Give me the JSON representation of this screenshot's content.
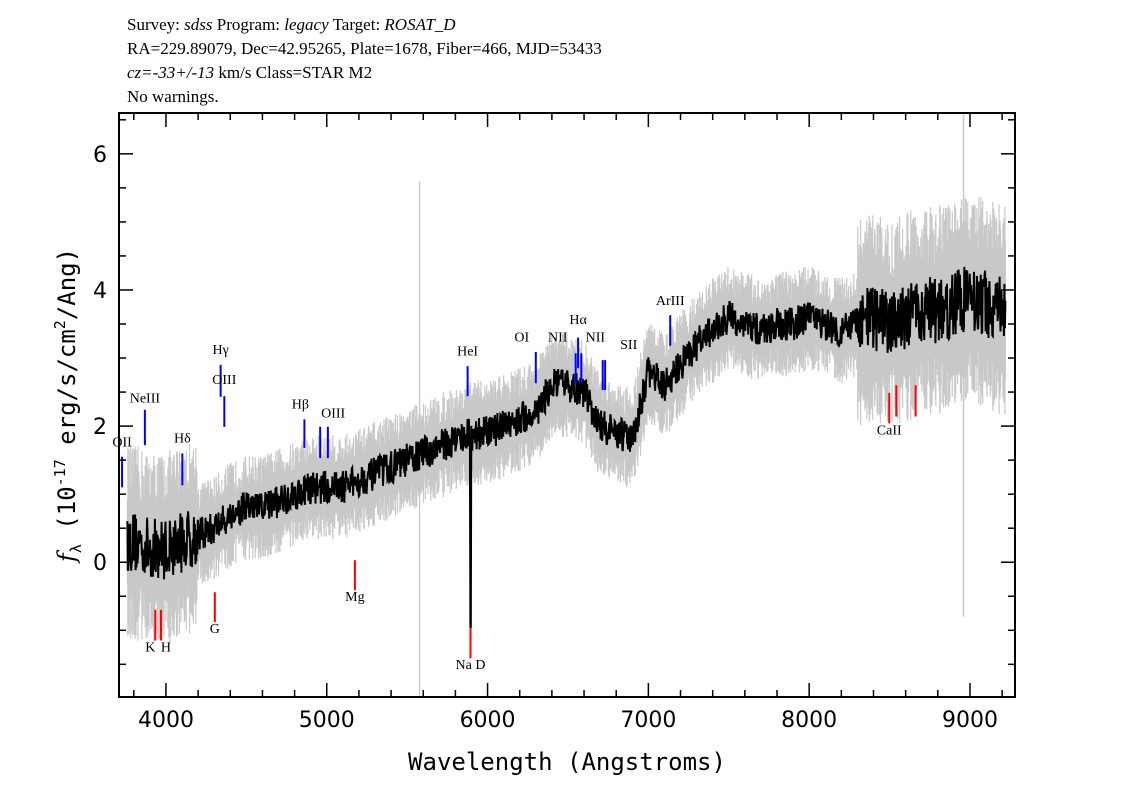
{
  "header": {
    "line1": {
      "survey_label": "Survey: ",
      "survey": "sdss",
      "program_label": " Program: ",
      "program": "legacy",
      "target_label": " Target: ",
      "target": "ROSAT_D"
    },
    "line2": "RA=229.89079, Dec=42.95265, Plate=1678, Fiber=466, MJD=53433",
    "line3": {
      "cz": "cz=-33+/-13",
      "rest": " km/s Class=STAR M2"
    },
    "line4": "No warnings."
  },
  "chart_data": {
    "type": "line",
    "xlabel": "Wavelength (Angstroms)",
    "ylabel": {
      "main": "f",
      "sub": "λ",
      "pre": " (10",
      "exp": "-17",
      "mid": " erg/s/cm",
      "exp2": "2",
      "post": "/Ang)"
    },
    "xlim": [
      3708,
      9280
    ],
    "ylim": [
      -1.98,
      6.6
    ],
    "x_ticks": [
      4000,
      5000,
      6000,
      7000,
      8000,
      9000
    ],
    "x_tick_labels": [
      "4000",
      "5000",
      "6000",
      "7000",
      "8000",
      "9000"
    ],
    "y_ticks": [
      0,
      2,
      4,
      6
    ],
    "y_tick_labels": [
      "0",
      "2",
      "4",
      "6"
    ],
    "colors": {
      "flux": "#000000",
      "error": "#c8c8c8",
      "emission": "#0000ff",
      "absorption": "#ff0000"
    },
    "flux_smoothed": {
      "wavelength": [
        3800,
        3900,
        4000,
        4100,
        4200,
        4300,
        4400,
        4500,
        4600,
        4700,
        4800,
        4900,
        5000,
        5100,
        5200,
        5300,
        5400,
        5500,
        5600,
        5700,
        5800,
        5900,
        6000,
        6100,
        6200,
        6300,
        6400,
        6500,
        6600,
        6700,
        6800,
        6900,
        7000,
        7100,
        7200,
        7300,
        7400,
        7500,
        7600,
        7700,
        7800,
        7900,
        8000,
        8100,
        8200,
        8300,
        8400,
        8500,
        8600,
        8700,
        8800,
        8900,
        9000,
        9100,
        9200
      ],
      "flux": [
        0.3,
        0.2,
        0.2,
        0.3,
        0.4,
        0.5,
        0.7,
        0.8,
        0.8,
        0.9,
        1.0,
        1.1,
        1.1,
        1.1,
        1.2,
        1.3,
        1.4,
        1.5,
        1.6,
        1.7,
        1.8,
        1.9,
        1.9,
        2.0,
        2.1,
        2.2,
        2.6,
        2.6,
        2.5,
        2.0,
        1.9,
        1.8,
        2.8,
        2.6,
        2.9,
        3.2,
        3.4,
        3.6,
        3.5,
        3.4,
        3.5,
        3.5,
        3.6,
        3.5,
        3.4,
        3.5,
        3.6,
        3.5,
        3.6,
        3.7,
        3.7,
        3.8,
        3.9,
        3.8,
        3.7
      ]
    },
    "lines": [
      {
        "name": "OII",
        "wavelength": 3727,
        "kind": "emission",
        "y": [
          1.1,
          1.55
        ],
        "label_y": 1.7
      },
      {
        "name": "NeIII",
        "wavelength": 3869,
        "kind": "emission",
        "y": [
          1.72,
          2.24
        ],
        "label_y": 2.35
      },
      {
        "name": "Hδ",
        "wavelength": 4102,
        "kind": "emission",
        "y": [
          1.13,
          1.6
        ],
        "label_y": 1.76
      },
      {
        "name": "Hγ",
        "wavelength": 4340,
        "kind": "emission",
        "y": [
          2.43,
          2.9
        ],
        "label_y": 3.06
      },
      {
        "name": "OIII",
        "wavelength": 4363,
        "kind": "emission",
        "y": [
          1.99,
          2.44
        ],
        "label_y": 2.62
      },
      {
        "name": "Hβ",
        "wavelength": 4861,
        "kind": "emission",
        "y": [
          1.68,
          2.1
        ],
        "label_y": 2.26
      },
      {
        "name": "OIII",
        "wavelength": 4959,
        "kind": "emission",
        "y": [
          1.53,
          1.99
        ],
        "label_y": 2.13
      },
      {
        "name": "",
        "wavelength": 5007,
        "kind": "emission",
        "y": [
          1.53,
          1.99
        ]
      },
      {
        "name": "HeI",
        "wavelength": 5876,
        "kind": "emission",
        "y": [
          2.44,
          2.88
        ],
        "label_y": 3.04
      },
      {
        "name": "OI",
        "wavelength": 6300,
        "kind": "emission",
        "y": [
          2.63,
          3.09
        ],
        "label_y": 3.24
      },
      {
        "name": "NII",
        "wavelength": 6548,
        "kind": "emission",
        "y": [
          2.63,
          3.07
        ],
        "label_y": 3.24
      },
      {
        "name": "Hα",
        "wavelength": 6563,
        "kind": "emission",
        "y": [
          2.85,
          3.3
        ],
        "label_y": 3.5
      },
      {
        "name": "NII",
        "wavelength": 6583,
        "kind": "emission",
        "y": [
          2.63,
          3.07
        ],
        "label_y": 3.24
      },
      {
        "name": "SII",
        "wavelength": 6716,
        "kind": "emission",
        "y": [
          2.53,
          2.97
        ],
        "label_y": 3.13
      },
      {
        "name": "",
        "wavelength": 6731,
        "kind": "emission",
        "y": [
          2.53,
          2.97
        ]
      },
      {
        "name": "ArIII",
        "wavelength": 7136,
        "kind": "emission",
        "y": [
          3.18,
          3.63
        ],
        "label_y": 3.78
      },
      {
        "name": "K",
        "wavelength": 3934,
        "kind": "absorption",
        "y": [
          -1.15,
          -0.7
        ],
        "label_y": -1.31
      },
      {
        "name": "H",
        "wavelength": 3969,
        "kind": "absorption",
        "y": [
          -1.15,
          -0.7
        ],
        "label_y": -1.31
      },
      {
        "name": "G",
        "wavelength": 4304,
        "kind": "absorption",
        "y": [
          -0.88,
          -0.44
        ],
        "label_y": -1.04
      },
      {
        "name": "Mg",
        "wavelength": 5175,
        "kind": "absorption",
        "y": [
          -0.41,
          0.03
        ],
        "label_y": -0.57
      },
      {
        "name": "Na D",
        "wavelength": 5894,
        "kind": "absorption",
        "y": [
          -1.41,
          -0.96
        ],
        "label_y": -1.57
      },
      {
        "name": "CaII",
        "wavelength": 8498,
        "kind": "absorption",
        "y": [
          2.04,
          2.49
        ],
        "label_y": 1.88
      },
      {
        "name": "",
        "wavelength": 8542,
        "kind": "absorption",
        "y": [
          2.14,
          2.6
        ]
      },
      {
        "name": "",
        "wavelength": 8662,
        "kind": "absorption",
        "y": [
          2.14,
          2.6
        ]
      }
    ]
  }
}
